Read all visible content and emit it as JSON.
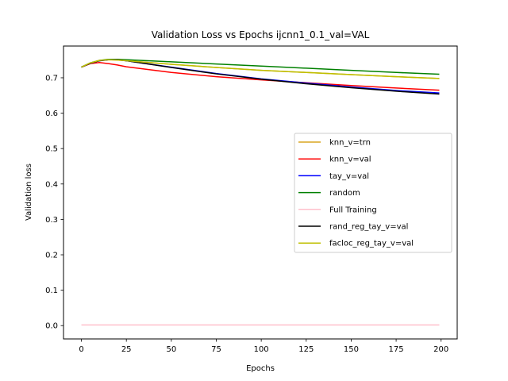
{
  "chart_data": {
    "type": "line",
    "title": "Validation Loss vs Epochs ijcnn1_0.1_val=VAL",
    "xlabel": "Epochs",
    "ylabel": "Validation loss",
    "xlim": [
      -9.95,
      208.95
    ],
    "ylim": [
      -0.0376,
      0.7896
    ],
    "xticks": [
      0,
      25,
      50,
      75,
      100,
      125,
      150,
      175,
      200
    ],
    "yticks": [
      0.0,
      0.1,
      0.2,
      0.3,
      0.4,
      0.5,
      0.6,
      0.7
    ],
    "ytick_labels": [
      "0.0",
      "0.1",
      "0.2",
      "0.3",
      "0.4",
      "0.5",
      "0.6",
      "0.7"
    ],
    "grid": false,
    "legend_position": "center-right",
    "series": [
      {
        "name": "knn_v=trn",
        "color": "#daa520",
        "x": [
          0,
          5,
          10,
          15,
          20,
          25,
          50,
          75,
          100,
          125,
          150,
          175,
          199
        ],
        "y": [
          0.73,
          0.742,
          0.749,
          0.751,
          0.75,
          0.748,
          0.738,
          0.729,
          0.721,
          0.715,
          0.709,
          0.703,
          0.698
        ]
      },
      {
        "name": "knn_v=val",
        "color": "#ff0000",
        "x": [
          0,
          5,
          10,
          15,
          20,
          25,
          50,
          75,
          100,
          125,
          150,
          175,
          199
        ],
        "y": [
          0.73,
          0.74,
          0.743,
          0.74,
          0.736,
          0.731,
          0.715,
          0.703,
          0.694,
          0.686,
          0.678,
          0.671,
          0.665
        ]
      },
      {
        "name": "tay_v=val",
        "color": "#0000ff",
        "x": [
          0,
          5,
          10,
          15,
          20,
          25,
          50,
          75,
          100,
          125,
          150,
          175,
          199
        ],
        "y": [
          0.73,
          0.741,
          0.748,
          0.751,
          0.751,
          0.748,
          0.73,
          0.712,
          0.697,
          0.685,
          0.674,
          0.664,
          0.657
        ]
      },
      {
        "name": "random",
        "color": "#008000",
        "x": [
          0,
          5,
          10,
          15,
          20,
          25,
          50,
          75,
          100,
          125,
          150,
          175,
          199
        ],
        "y": [
          0.73,
          0.742,
          0.749,
          0.752,
          0.752,
          0.751,
          0.745,
          0.739,
          0.733,
          0.727,
          0.721,
          0.715,
          0.71
        ]
      },
      {
        "name": "Full Training",
        "color": "#ffc0cb",
        "x": [
          0,
          50,
          100,
          150,
          199
        ],
        "y": [
          0.002,
          0.002,
          0.002,
          0.002,
          0.002
        ]
      },
      {
        "name": "rand_reg_tay_v=val",
        "color": "#000000",
        "x": [
          0,
          5,
          10,
          15,
          20,
          25,
          50,
          75,
          100,
          125,
          150,
          175,
          199
        ],
        "y": [
          0.73,
          0.741,
          0.748,
          0.751,
          0.751,
          0.748,
          0.729,
          0.711,
          0.696,
          0.683,
          0.672,
          0.662,
          0.654
        ]
      },
      {
        "name": "facloc_reg_tay_v=val",
        "color": "#bfbf00",
        "x": [
          0,
          5,
          10,
          15,
          20,
          25,
          50,
          75,
          100,
          125,
          150,
          175,
          199
        ],
        "y": [
          0.73,
          0.742,
          0.749,
          0.751,
          0.75,
          0.748,
          0.738,
          0.729,
          0.721,
          0.715,
          0.709,
          0.703,
          0.698
        ]
      }
    ]
  }
}
